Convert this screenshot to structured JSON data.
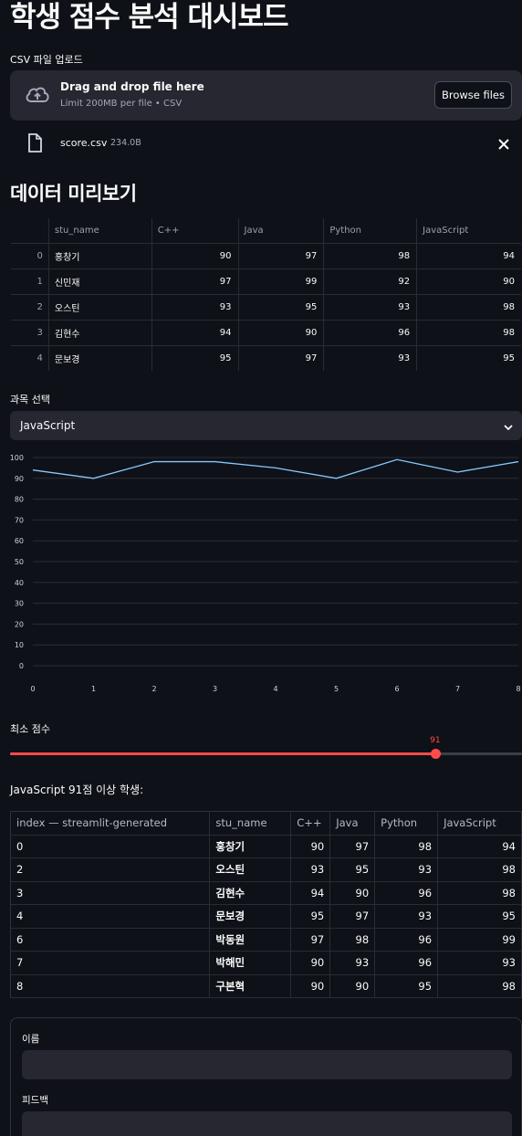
{
  "page": {
    "title": "학생 점수 분석 대시보드"
  },
  "upload": {
    "label": "CSV 파일 업로드",
    "drop_title": "Drag and drop file here",
    "drop_sub": "Limit 200MB per file • CSV",
    "browse_label": "Browse files",
    "file_name": "score.csv",
    "file_size": "234.0B"
  },
  "preview": {
    "heading": "데이터 미리보기",
    "columns": [
      "stu_name",
      "C++",
      "Java",
      "Python",
      "JavaScript"
    ],
    "rows": [
      {
        "idx": "0",
        "name": "홍창기",
        "cpp": "90",
        "java": "97",
        "python": "98",
        "js": "94"
      },
      {
        "idx": "1",
        "name": "신민재",
        "cpp": "97",
        "java": "99",
        "python": "92",
        "js": "90"
      },
      {
        "idx": "2",
        "name": "오스틴",
        "cpp": "93",
        "java": "95",
        "python": "93",
        "js": "98"
      },
      {
        "idx": "3",
        "name": "김현수",
        "cpp": "94",
        "java": "90",
        "python": "96",
        "js": "98"
      },
      {
        "idx": "4",
        "name": "문보경",
        "cpp": "95",
        "java": "97",
        "python": "93",
        "js": "95"
      }
    ]
  },
  "subject": {
    "label": "과목 선택",
    "value": "JavaScript"
  },
  "chart_data": {
    "type": "line",
    "x": [
      0,
      1,
      2,
      3,
      4,
      5,
      6,
      7,
      8
    ],
    "series": [
      {
        "values": [
          94,
          90,
          98,
          98,
          95,
          90,
          99,
          93,
          98
        ]
      }
    ],
    "xlim": [
      0,
      8
    ],
    "ylim": [
      0,
      100
    ],
    "yticks": [
      "0",
      "10",
      "20",
      "30",
      "40",
      "50",
      "60",
      "70",
      "80",
      "90",
      "100"
    ],
    "xticks": [
      "0",
      "1",
      "2",
      "3",
      "4",
      "5",
      "6",
      "7",
      "8"
    ],
    "grid": true,
    "line_color": "#83c9ff"
  },
  "slider": {
    "label": "최소 점수",
    "value": 91,
    "min": 0,
    "max": 100
  },
  "filtered": {
    "heading": "JavaScript 91점 이상 학생:",
    "columns": [
      "index — streamlit-generated",
      "stu_name",
      "C++",
      "Java",
      "Python",
      "JavaScript"
    ],
    "rows": [
      {
        "idx": "0",
        "name": "홍창기",
        "cpp": "90",
        "java": "97",
        "python": "98",
        "js": "94"
      },
      {
        "idx": "2",
        "name": "오스틴",
        "cpp": "93",
        "java": "95",
        "python": "93",
        "js": "98"
      },
      {
        "idx": "3",
        "name": "김현수",
        "cpp": "94",
        "java": "90",
        "python": "96",
        "js": "98"
      },
      {
        "idx": "4",
        "name": "문보경",
        "cpp": "95",
        "java": "97",
        "python": "93",
        "js": "95"
      },
      {
        "idx": "6",
        "name": "박동원",
        "cpp": "97",
        "java": "98",
        "python": "96",
        "js": "99"
      },
      {
        "idx": "7",
        "name": "박해민",
        "cpp": "90",
        "java": "93",
        "python": "96",
        "js": "93"
      },
      {
        "idx": "8",
        "name": "구본혁",
        "cpp": "90",
        "java": "90",
        "python": "95",
        "js": "98"
      }
    ]
  },
  "form": {
    "name_label": "이름",
    "name_value": "",
    "feedback_label": "피드백",
    "feedback_value": ""
  },
  "colors": {
    "background": "#0e1117",
    "widget": "#262730",
    "accent": "#ff4b4b",
    "line": "#83c9ff"
  }
}
